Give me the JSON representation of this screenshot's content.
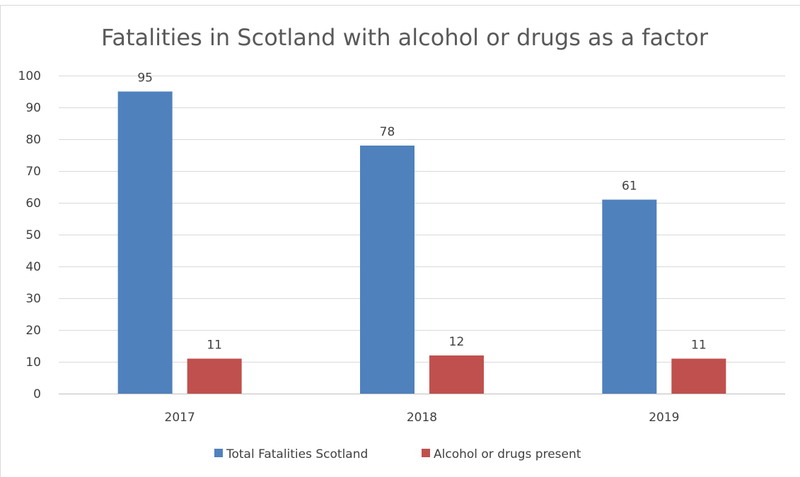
{
  "chart_data": {
    "type": "bar",
    "title": "Fatalities in Scotland with alcohol or drugs as a factor",
    "categories": [
      "2017",
      "2018",
      "2019"
    ],
    "series": [
      {
        "name": "Total Fatalities Scotland",
        "values": [
          95,
          78,
          61
        ],
        "color": "#4f81bd"
      },
      {
        "name": "Alcohol or drugs present",
        "values": [
          11,
          12,
          11
        ],
        "color": "#c0504d"
      }
    ],
    "ylim": [
      0,
      100
    ],
    "yticks": [
      "0",
      "10",
      "20",
      "30",
      "40",
      "50",
      "60",
      "70",
      "80",
      "90",
      "100"
    ],
    "grid": true,
    "legend": "bottom"
  }
}
